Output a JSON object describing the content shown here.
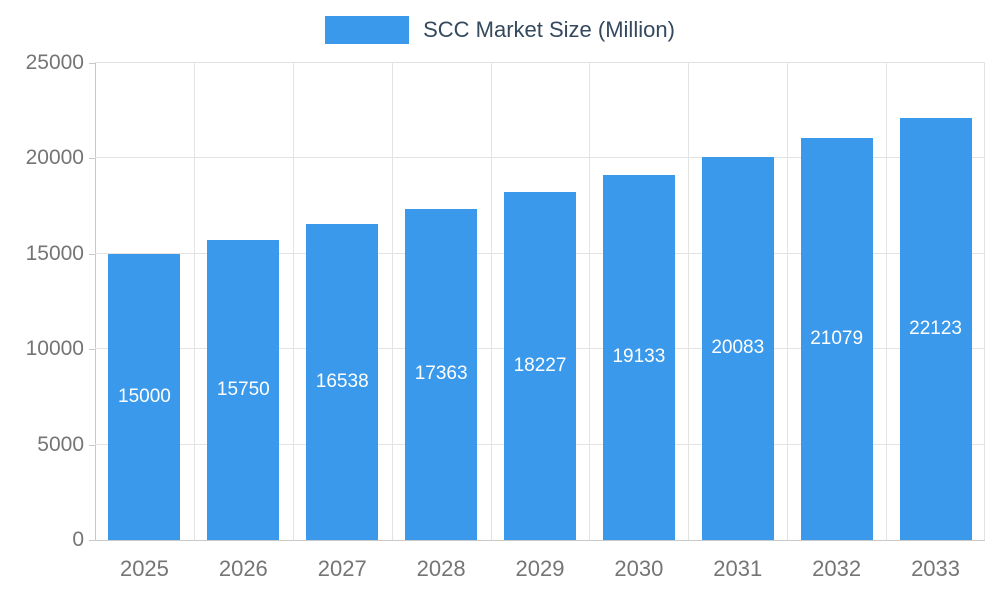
{
  "chart_data": {
    "type": "bar",
    "title": "SCC Market Size (Million)",
    "legend": [
      "SCC Market Size (Million)"
    ],
    "legend_position": "top",
    "categories": [
      "2025",
      "2026",
      "2027",
      "2028",
      "2029",
      "2030",
      "2031",
      "2032",
      "2033"
    ],
    "series": [
      {
        "name": "SCC Market Size (Million)",
        "values": [
          15000,
          15750,
          16538,
          17363,
          18227,
          19133,
          20083,
          21079,
          22123
        ]
      }
    ],
    "value_labels_shown": true,
    "value_label_position": "inside-center",
    "xlabel": "",
    "ylabel": "",
    "ylim": [
      0,
      25000
    ],
    "yticks": [
      0,
      5000,
      10000,
      15000,
      20000,
      25000
    ],
    "grid": true,
    "colors": {
      "bar": "#3a99ea",
      "value_label": "#ffffff",
      "axis_text": "#757575",
      "legend_text": "#34495e",
      "gridline": "#e3e3e3",
      "axis_line": "#c9c9c9",
      "background": "#ffffff"
    }
  }
}
